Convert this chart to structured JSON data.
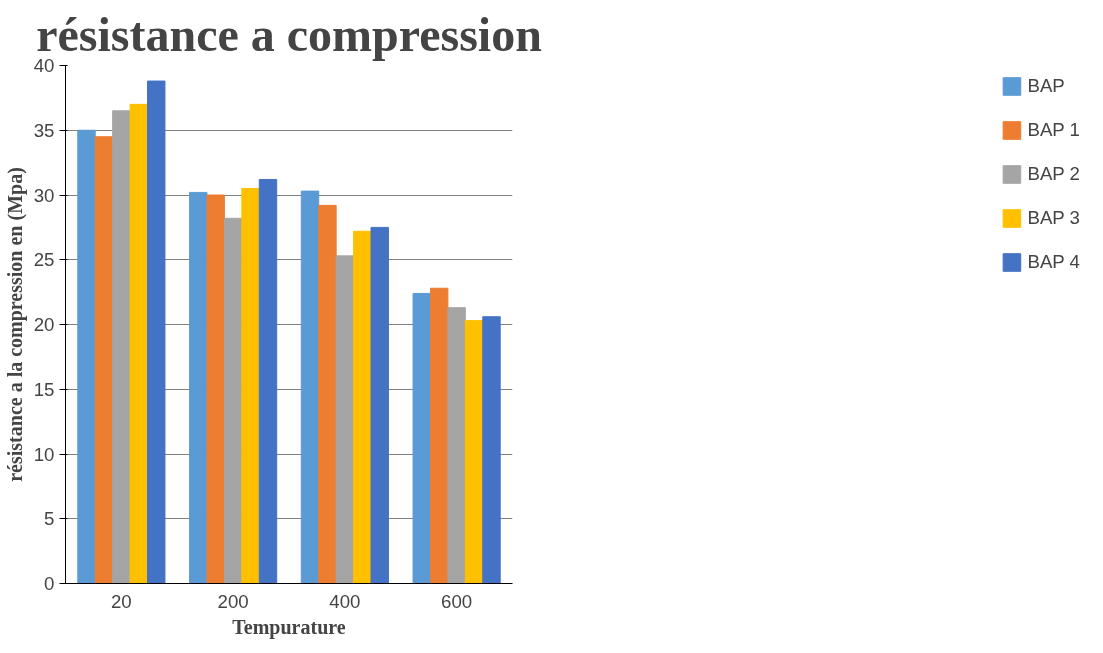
{
  "chart_data": {
    "type": "bar",
    "title": "résistance a compression",
    "xlabel": "Tempurature",
    "ylabel": "résistance a la compression en (Mpa)",
    "categories": [
      "20",
      "200",
      "400",
      "600"
    ],
    "series": [
      {
        "name": "BAP",
        "color": "#5b9bd5",
        "values": [
          35,
          30.2,
          30.3,
          22.4
        ]
      },
      {
        "name": "BAP 1",
        "color": "#ed7d31",
        "values": [
          34.5,
          30,
          29.2,
          22.8
        ]
      },
      {
        "name": "BAP 2",
        "color": "#a5a5a5",
        "values": [
          36.5,
          28.2,
          25.3,
          21.3
        ]
      },
      {
        "name": "BAP 3",
        "color": "#ffc000",
        "values": [
          37,
          30.5,
          27.2,
          20.3
        ]
      },
      {
        "name": "BAP 4",
        "color": "#4472c4",
        "values": [
          38.8,
          31.2,
          27.5,
          20.6
        ]
      }
    ],
    "ylim": [
      0,
      40
    ],
    "yticks": [
      0,
      5,
      10,
      15,
      20,
      25,
      30,
      35,
      40
    ],
    "grid": "y",
    "legend": "right"
  }
}
